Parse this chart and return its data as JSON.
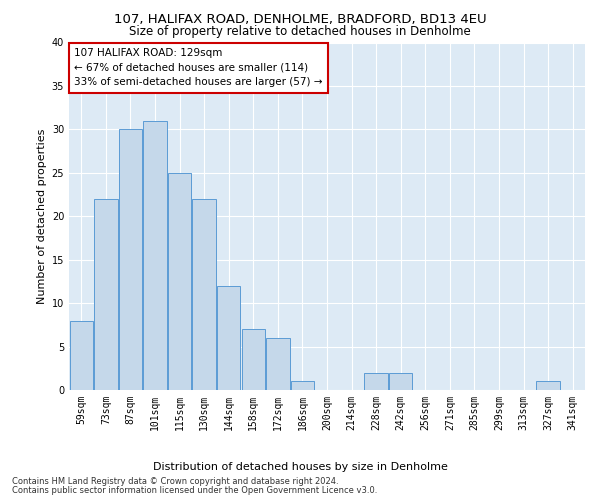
{
  "title": "107, HALIFAX ROAD, DENHOLME, BRADFORD, BD13 4EU",
  "subtitle": "Size of property relative to detached houses in Denholme",
  "xlabel": "Distribution of detached houses by size in Denholme",
  "ylabel": "Number of detached properties",
  "annotation_title": "107 HALIFAX ROAD: 129sqm",
  "annotation_line2": "← 67% of detached houses are smaller (114)",
  "annotation_line3": "33% of semi-detached houses are larger (57) →",
  "footer1": "Contains HM Land Registry data © Crown copyright and database right 2024.",
  "footer2": "Contains public sector information licensed under the Open Government Licence v3.0.",
  "categories": [
    "59sqm",
    "73sqm",
    "87sqm",
    "101sqm",
    "115sqm",
    "130sqm",
    "144sqm",
    "158sqm",
    "172sqm",
    "186sqm",
    "200sqm",
    "214sqm",
    "228sqm",
    "242sqm",
    "256sqm",
    "271sqm",
    "285sqm",
    "299sqm",
    "313sqm",
    "327sqm",
    "341sqm"
  ],
  "values": [
    8,
    22,
    30,
    31,
    25,
    22,
    12,
    7,
    6,
    1,
    0,
    0,
    2,
    2,
    0,
    0,
    0,
    0,
    0,
    1,
    0
  ],
  "bar_color": "#c5d8ea",
  "bar_edge_color": "#5b9bd5",
  "highlight_edge_color": "#1f4e79",
  "ylim": [
    0,
    40
  ],
  "yticks": [
    0,
    5,
    10,
    15,
    20,
    25,
    30,
    35,
    40
  ],
  "background_color": "#ddeaf5",
  "grid_color": "#ffffff",
  "annotation_box_color": "#ffffff",
  "annotation_box_edge": "#cc0000",
  "title_fontsize": 9.5,
  "subtitle_fontsize": 8.5,
  "xlabel_fontsize": 8,
  "ylabel_fontsize": 8,
  "tick_fontsize": 7,
  "annotation_fontsize": 7.5,
  "footer_fontsize": 6
}
